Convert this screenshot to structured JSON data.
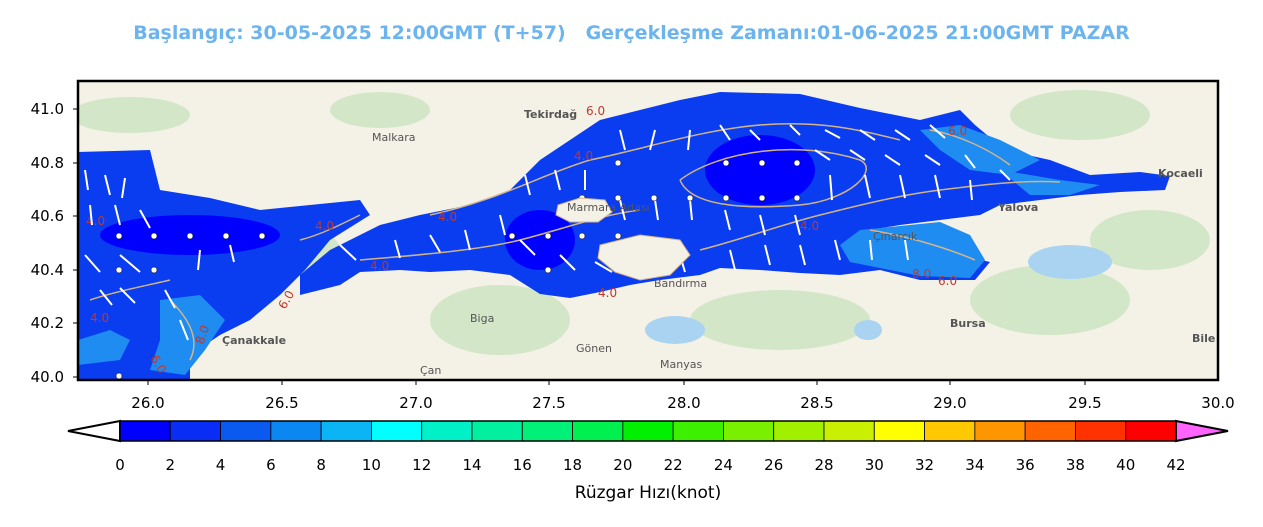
{
  "title": {
    "start": "Başlangıç: 30-05-2025 12:00GMT (T+57)",
    "valid": "Gerçekleşme Zamanı:01-06-2025 21:00GMT PAZAR"
  },
  "map": {
    "x_ticks": [
      "26.0",
      "26.5",
      "27.0",
      "27.5",
      "28.0",
      "28.5",
      "29.0",
      "29.5",
      "30.0"
    ],
    "y_ticks": [
      "41.0",
      "40.8",
      "40.6",
      "40.4",
      "40.2",
      "40.0"
    ],
    "places": [
      {
        "name": "Tekirdağ",
        "bold": true
      },
      {
        "name": "Malkara",
        "bold": false
      },
      {
        "name": "Çanakkale",
        "bold": true
      },
      {
        "name": "Biga",
        "bold": false
      },
      {
        "name": "Bandırma",
        "bold": false
      },
      {
        "name": "Gönen",
        "bold": false
      },
      {
        "name": "Manyas",
        "bold": false
      },
      {
        "name": "Yalova",
        "bold": true
      },
      {
        "name": "Bursa",
        "bold": true
      },
      {
        "name": "Kocaeli",
        "bold": true
      },
      {
        "name": "Çınarcık",
        "bold": false
      },
      {
        "name": "Marmara Adası",
        "bold": false
      },
      {
        "name": "Çan",
        "bold": false
      },
      {
        "name": "Bile",
        "bold": true
      }
    ],
    "contour_labels": [
      "6.0",
      "4.0",
      "4.0",
      "4.0",
      "4.0",
      "6.0",
      "6.0",
      "4.0",
      "8.0",
      "6.0",
      "8.0",
      "4.0",
      "6.0",
      "4.0",
      "4.0"
    ],
    "colors": {
      "land": "#f4f1e6",
      "sea_deep": "#0000ff",
      "sea_mid": "#0a3cf0",
      "sea_light": "#1ea0f0",
      "contour": "#d2b48c",
      "title": "#6cb4ee"
    }
  },
  "colorbar": {
    "label": "Rüzgar Hızı(knot)",
    "ticks": [
      "0",
      "2",
      "4",
      "6",
      "8",
      "10",
      "12",
      "14",
      "16",
      "18",
      "20",
      "22",
      "24",
      "26",
      "28",
      "30",
      "32",
      "34",
      "36",
      "38",
      "40",
      "42"
    ],
    "colors": [
      "#0000ff",
      "#0a2df5",
      "#0a5af0",
      "#0a87f0",
      "#0ab4f5",
      "#00ffff",
      "#00f0c8",
      "#00f0a0",
      "#00f078",
      "#00f050",
      "#00f000",
      "#3cf000",
      "#78f000",
      "#a0f000",
      "#c8f000",
      "#ffff00",
      "#ffc800",
      "#ff9600",
      "#ff6400",
      "#ff3200",
      "#ff0000"
    ],
    "over_color": "#ff64ff",
    "under_color": "#ffffff"
  }
}
